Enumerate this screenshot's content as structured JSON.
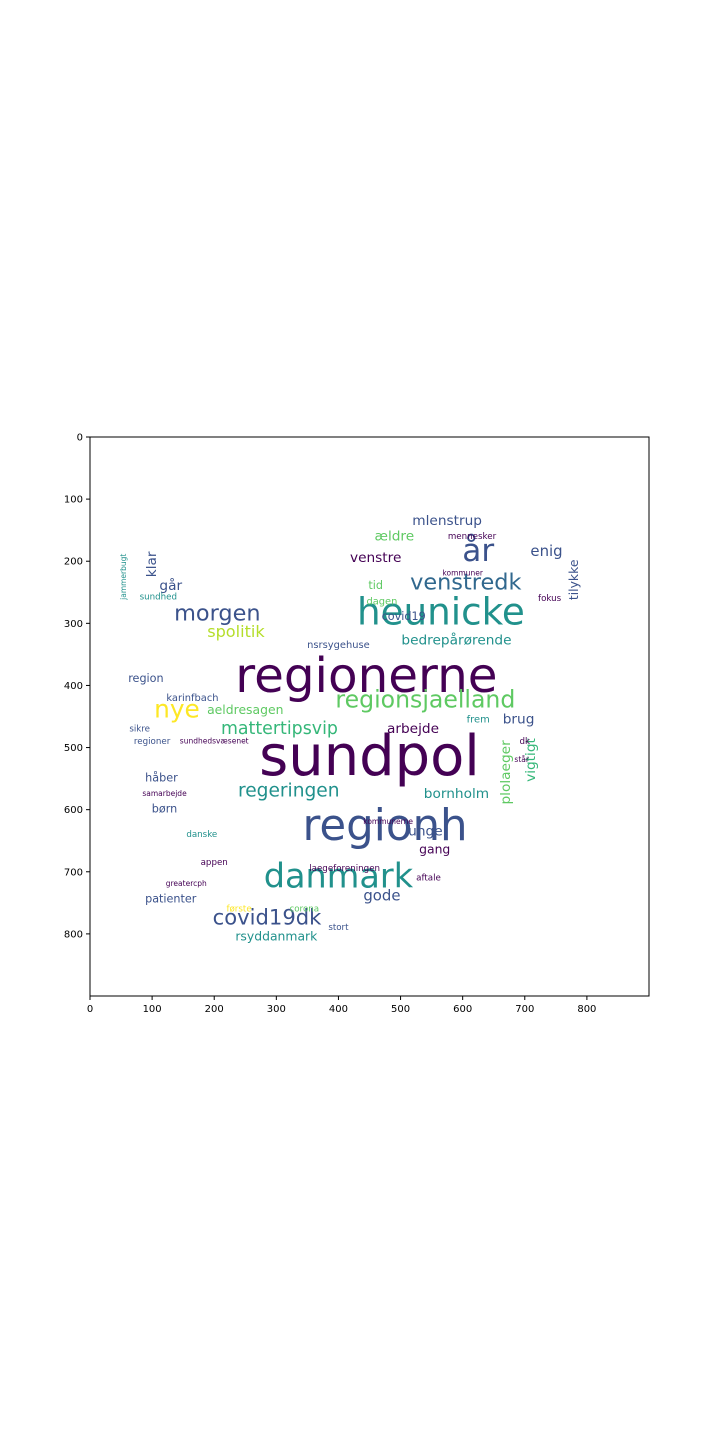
{
  "chart_data": {
    "type": "wordcloud",
    "title": "",
    "xlabel": "",
    "ylabel": "",
    "xlim": [
      0,
      900
    ],
    "ylim": [
      900,
      0
    ],
    "x_ticks": [
      0,
      100,
      200,
      300,
      400,
      500,
      600,
      700,
      800
    ],
    "y_ticks": [
      0,
      100,
      200,
      300,
      400,
      500,
      600,
      700,
      800
    ],
    "grid": false,
    "words": [
      {
        "text": "sundpol",
        "x": 450,
        "y": 520,
        "size": 90,
        "color": "#440154",
        "rotate": 0
      },
      {
        "text": "regionerne",
        "x": 445,
        "y": 390,
        "size": 78,
        "color": "#440154",
        "rotate": 0
      },
      {
        "text": "regionh",
        "x": 475,
        "y": 630,
        "size": 70,
        "color": "#3b528b",
        "rotate": 0
      },
      {
        "text": "heunicke",
        "x": 565,
        "y": 285,
        "size": 60,
        "color": "#21918c",
        "rotate": 0
      },
      {
        "text": "danmark",
        "x": 400,
        "y": 710,
        "size": 54,
        "color": "#21918c",
        "rotate": 0
      },
      {
        "text": "år",
        "x": 625,
        "y": 185,
        "size": 50,
        "color": "#3b528b",
        "rotate": 0
      },
      {
        "text": "regionsjaelland",
        "x": 540,
        "y": 425,
        "size": 38,
        "color": "#5ec962",
        "rotate": 0
      },
      {
        "text": "venstredk",
        "x": 605,
        "y": 235,
        "size": 36,
        "color": "#31688e",
        "rotate": 0
      },
      {
        "text": "morgen",
        "x": 205,
        "y": 285,
        "size": 36,
        "color": "#3b528b",
        "rotate": 0
      },
      {
        "text": "nye",
        "x": 140,
        "y": 440,
        "size": 40,
        "color": "#fde725",
        "rotate": 0
      },
      {
        "text": "covid19dk",
        "x": 285,
        "y": 775,
        "size": 34,
        "color": "#3b528b",
        "rotate": 0
      },
      {
        "text": "regeringen",
        "x": 320,
        "y": 570,
        "size": 30,
        "color": "#21918c",
        "rotate": 0
      },
      {
        "text": "mattertipsvip",
        "x": 305,
        "y": 470,
        "size": 28,
        "color": "#35b779",
        "rotate": 0
      },
      {
        "text": "spolitik",
        "x": 235,
        "y": 315,
        "size": 26,
        "color": "#b5de2b",
        "rotate": 0
      },
      {
        "text": "bedrepårørende",
        "x": 590,
        "y": 328,
        "size": 22,
        "color": "#21918c",
        "rotate": 0
      },
      {
        "text": "aeldresagen",
        "x": 250,
        "y": 440,
        "size": 20,
        "color": "#5ec962",
        "rotate": 0
      },
      {
        "text": "mlenstrup",
        "x": 575,
        "y": 135,
        "size": 22,
        "color": "#3b528b",
        "rotate": 0
      },
      {
        "text": "ældre",
        "x": 490,
        "y": 160,
        "size": 22,
        "color": "#5ec962",
        "rotate": 0
      },
      {
        "text": "enig",
        "x": 735,
        "y": 185,
        "size": 24,
        "color": "#3b528b",
        "rotate": 0
      },
      {
        "text": "venstre",
        "x": 460,
        "y": 195,
        "size": 22,
        "color": "#440154",
        "rotate": 0
      },
      {
        "text": "arbejde",
        "x": 520,
        "y": 470,
        "size": 22,
        "color": "#440154",
        "rotate": 0
      },
      {
        "text": "brug",
        "x": 690,
        "y": 455,
        "size": 22,
        "color": "#3b528b",
        "rotate": 0
      },
      {
        "text": "bornholm",
        "x": 590,
        "y": 575,
        "size": 22,
        "color": "#21918c",
        "rotate": 0
      },
      {
        "text": "unge",
        "x": 540,
        "y": 635,
        "size": 22,
        "color": "#3b528b",
        "rotate": 0
      },
      {
        "text": "gode",
        "x": 470,
        "y": 740,
        "size": 24,
        "color": "#3b528b",
        "rotate": 0
      },
      {
        "text": "gang",
        "x": 555,
        "y": 665,
        "size": 20,
        "color": "#440154",
        "rotate": 0
      },
      {
        "text": "rsyddanmark",
        "x": 300,
        "y": 805,
        "size": 20,
        "color": "#21918c",
        "rotate": 0
      },
      {
        "text": "klar",
        "x": 100,
        "y": 205,
        "size": 22,
        "color": "#3b528b",
        "rotate": -90
      },
      {
        "text": "går",
        "x": 130,
        "y": 240,
        "size": 22,
        "color": "#3b528b",
        "rotate": 0
      },
      {
        "text": "region",
        "x": 90,
        "y": 390,
        "size": 18,
        "color": "#3b528b",
        "rotate": 0
      },
      {
        "text": "karinfbach",
        "x": 165,
        "y": 420,
        "size": 16,
        "color": "#3b528b",
        "rotate": 0
      },
      {
        "text": "sundhed",
        "x": 110,
        "y": 258,
        "size": 14,
        "color": "#21918c",
        "rotate": 0
      },
      {
        "text": "tilykke",
        "x": 780,
        "y": 230,
        "size": 20,
        "color": "#3b528b",
        "rotate": -90
      },
      {
        "text": "plolaeger",
        "x": 670,
        "y": 540,
        "size": 22,
        "color": "#5ec962",
        "rotate": -90
      },
      {
        "text": "vigtigt",
        "x": 710,
        "y": 520,
        "size": 22,
        "color": "#35b779",
        "rotate": -90
      },
      {
        "text": "nsrsygehuse",
        "x": 400,
        "y": 335,
        "size": 16,
        "color": "#3b528b",
        "rotate": 0
      },
      {
        "text": "covid19",
        "x": 505,
        "y": 290,
        "size": 18,
        "color": "#3b528b",
        "rotate": 0
      },
      {
        "text": "dagen",
        "x": 470,
        "y": 265,
        "size": 16,
        "color": "#5ec962",
        "rotate": 0
      },
      {
        "text": "tid",
        "x": 460,
        "y": 240,
        "size": 18,
        "color": "#5ec962",
        "rotate": 0
      },
      {
        "text": "mennesker",
        "x": 615,
        "y": 160,
        "size": 14,
        "color": "#440154",
        "rotate": 0
      },
      {
        "text": "kommuner",
        "x": 600,
        "y": 220,
        "size": 12,
        "color": "#440154",
        "rotate": 0
      },
      {
        "text": "fokus",
        "x": 740,
        "y": 260,
        "size": 14,
        "color": "#440154",
        "rotate": 0
      },
      {
        "text": "håber",
        "x": 115,
        "y": 550,
        "size": 18,
        "color": "#3b528b",
        "rotate": 0
      },
      {
        "text": "børn",
        "x": 120,
        "y": 600,
        "size": 18,
        "color": "#3b528b",
        "rotate": 0
      },
      {
        "text": "regioner",
        "x": 100,
        "y": 490,
        "size": 14,
        "color": "#3b528b",
        "rotate": 0
      },
      {
        "text": "sikre",
        "x": 80,
        "y": 470,
        "size": 14,
        "color": "#3b528b",
        "rotate": 0
      },
      {
        "text": "danske",
        "x": 180,
        "y": 640,
        "size": 14,
        "color": "#21918c",
        "rotate": 0
      },
      {
        "text": "appen",
        "x": 200,
        "y": 685,
        "size": 14,
        "color": "#440154",
        "rotate": 0
      },
      {
        "text": "patienter",
        "x": 130,
        "y": 745,
        "size": 18,
        "color": "#3b528b",
        "rotate": 0
      },
      {
        "text": "laegeforeningen",
        "x": 410,
        "y": 695,
        "size": 14,
        "color": "#440154",
        "rotate": 0
      },
      {
        "text": "kommunerne",
        "x": 480,
        "y": 620,
        "size": 12,
        "color": "#440154",
        "rotate": 0
      },
      {
        "text": "aftale",
        "x": 545,
        "y": 710,
        "size": 14,
        "color": "#440154",
        "rotate": 0
      },
      {
        "text": "stort",
        "x": 400,
        "y": 790,
        "size": 14,
        "color": "#3b528b",
        "rotate": 0
      },
      {
        "text": "dk",
        "x": 700,
        "y": 490,
        "size": 14,
        "color": "#440154",
        "rotate": 0
      },
      {
        "text": "står",
        "x": 695,
        "y": 520,
        "size": 12,
        "color": "#440154",
        "rotate": 0
      },
      {
        "text": "frem",
        "x": 625,
        "y": 455,
        "size": 16,
        "color": "#21918c",
        "rotate": 0
      },
      {
        "text": "samarbejde",
        "x": 120,
        "y": 575,
        "size": 12,
        "color": "#440154",
        "rotate": 0
      },
      {
        "text": "sundhedsvæsenet",
        "x": 200,
        "y": 490,
        "size": 12,
        "color": "#440154",
        "rotate": 0
      },
      {
        "text": "første",
        "x": 240,
        "y": 760,
        "size": 14,
        "color": "#fde725",
        "rotate": 0
      },
      {
        "text": "corona",
        "x": 345,
        "y": 760,
        "size": 14,
        "color": "#5ec962",
        "rotate": 0
      },
      {
        "text": "greatercph",
        "x": 155,
        "y": 720,
        "size": 12,
        "color": "#440154",
        "rotate": 0
      },
      {
        "text": "jammerbugt",
        "x": 55,
        "y": 225,
        "size": 12,
        "color": "#21918c",
        "rotate": -90
      }
    ]
  }
}
